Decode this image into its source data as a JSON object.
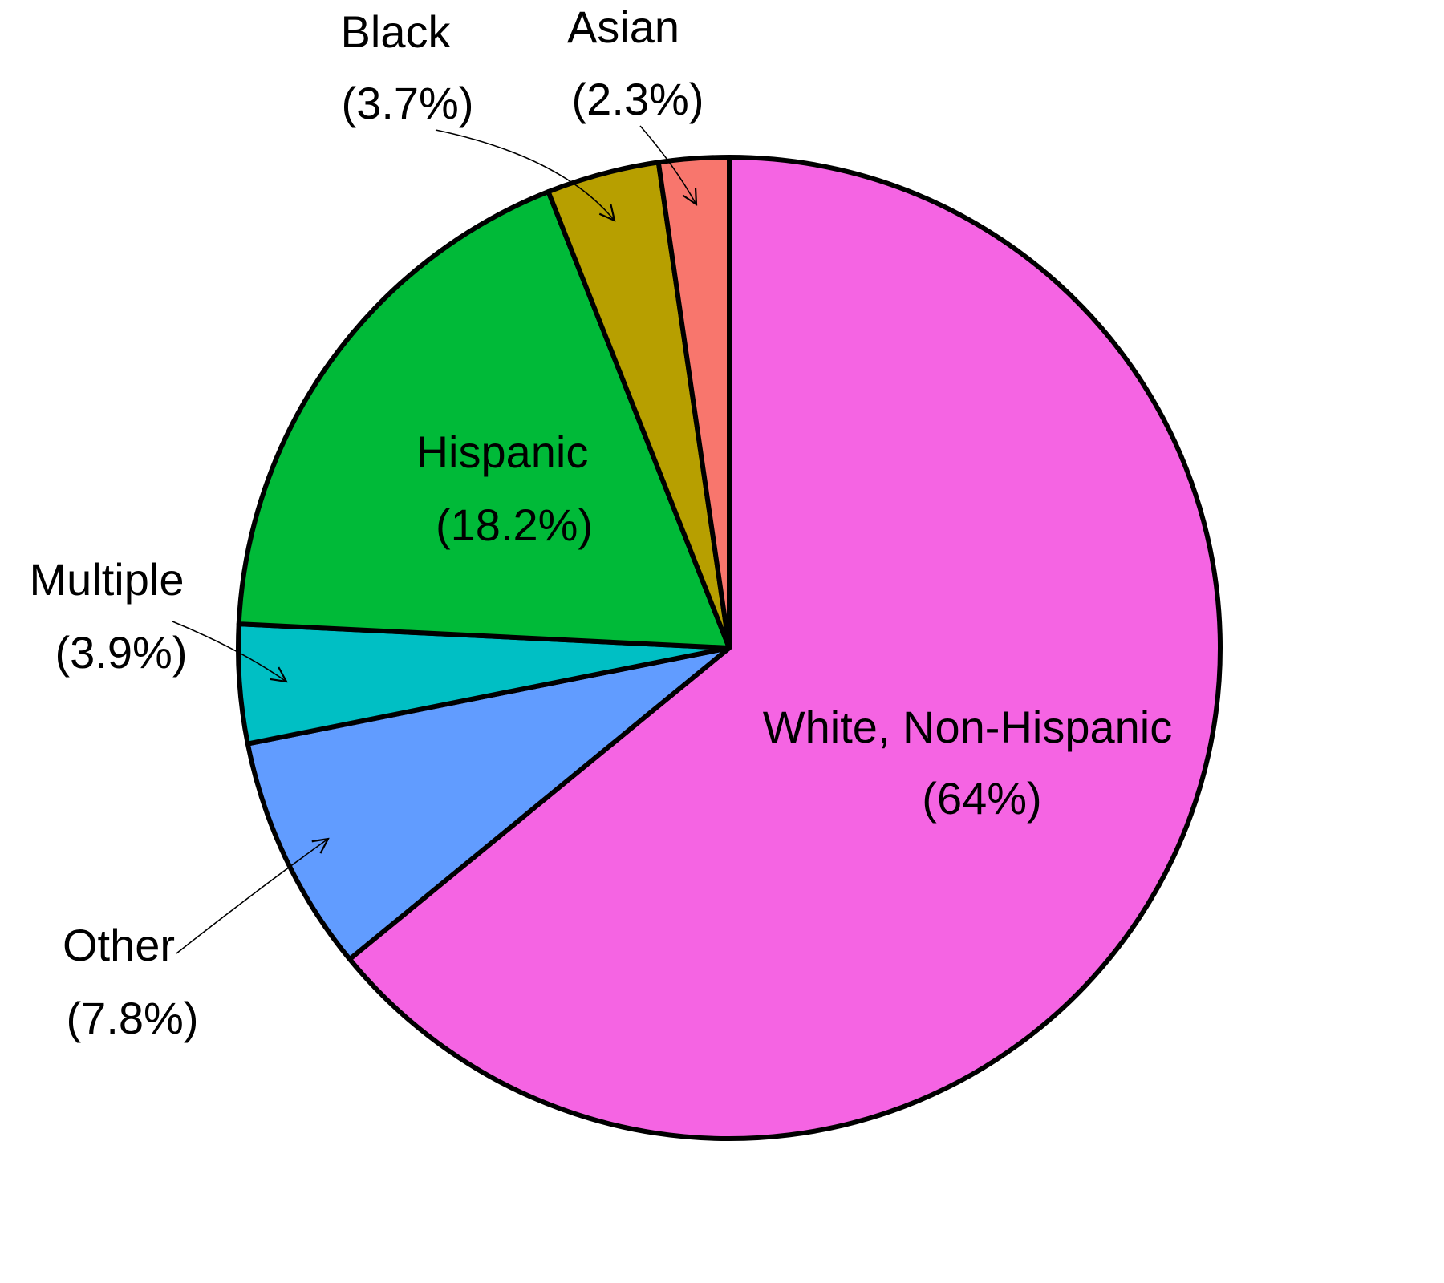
{
  "chart_data": {
    "type": "pie",
    "categories": [
      "White, Non-Hispanic",
      "Other",
      "Multiple",
      "Hispanic",
      "Black",
      "Asian"
    ],
    "values": [
      64,
      7.8,
      3.9,
      18.2,
      3.7,
      2.3
    ],
    "value_labels": [
      "(64%)",
      "(7.8%)",
      "(3.9%)",
      "(18.2%)",
      "(3.7%)",
      "(2.3%)"
    ],
    "colors": [
      "#f564e3",
      "#619cff",
      "#00bfc4",
      "#00ba38",
      "#b79f00",
      "#f8766d"
    ]
  }
}
